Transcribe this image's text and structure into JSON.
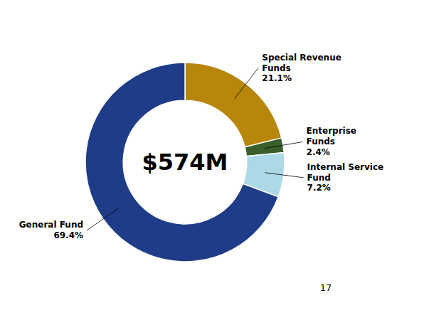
{
  "chart_data": {
    "type": "donut",
    "categories": [
      "Special Revenue\nFunds",
      "Enterprise\nFunds",
      "Internal Service\nFund",
      "General Fund"
    ],
    "values": [
      21.1,
      2.4,
      7.2,
      69.4
    ],
    "value_labels": [
      "21.1%",
      "2.4%",
      "7.2%",
      "69.4%"
    ],
    "colors": [
      "#B8860B",
      "#3A5F2A",
      "#ADD8E6",
      "#1F3C88"
    ],
    "data_labels": true,
    "annotations": [
      "$574M",
      "17"
    ]
  }
}
